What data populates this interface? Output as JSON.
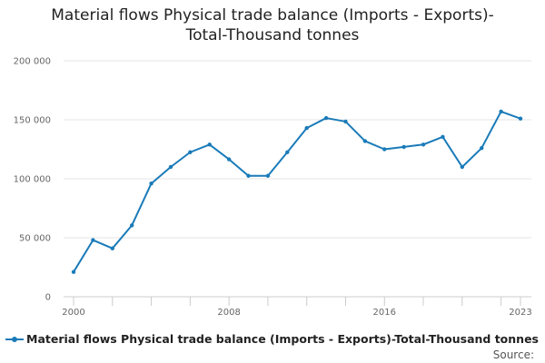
{
  "chart_data": {
    "type": "line",
    "title_lines": [
      "Material flows Physical trade balance (Imports - Exports)-",
      "Total-Thousand tonnes"
    ],
    "x": [
      2000,
      2001,
      2002,
      2003,
      2004,
      2005,
      2006,
      2007,
      2008,
      2009,
      2010,
      2011,
      2012,
      2013,
      2014,
      2015,
      2016,
      2017,
      2018,
      2019,
      2020,
      2021,
      2022,
      2023
    ],
    "series": [
      {
        "name": "Material flows Physical trade balance (Imports - Exports)-Total-Thousand tonnes",
        "color": "#1a7bb9",
        "values": [
          21000,
          48000,
          41000,
          60500,
          96000,
          110000,
          122500,
          129000,
          116500,
          102500,
          102500,
          122500,
          143000,
          151500,
          148500,
          132000,
          125000,
          127000,
          129000,
          135500,
          110000,
          126000,
          157000,
          151000
        ]
      }
    ],
    "xlim": [
      2000,
      2023
    ],
    "ylim": [
      0,
      200000
    ],
    "y_ticks": [
      0,
      50000,
      100000,
      150000,
      200000
    ],
    "y_tick_labels": [
      "0",
      "50 000",
      "100 000",
      "150 000",
      "200 000"
    ],
    "x_tick_labels": [
      {
        "year": 2000,
        "label": "2000"
      },
      {
        "year": 2008,
        "label": "2008"
      },
      {
        "year": 2016,
        "label": "2016"
      },
      {
        "year": 2023,
        "label": "2023"
      }
    ],
    "grid": true,
    "legend": "bottom"
  },
  "source_label": "Source:"
}
